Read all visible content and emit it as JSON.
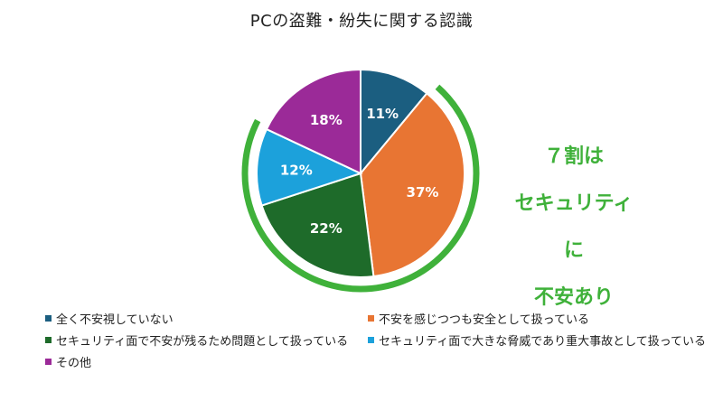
{
  "chart_data": {
    "type": "pie",
    "title": "PCの盗難・紛失に関する認識",
    "categories": [
      "全く不安視していない",
      "不安を感じつつも安全として扱っている",
      "セキュリティ面で不安が残るため問題として扱っている",
      "セキュリティ面で大きな脅威であり重大事故として扱っている",
      "その他"
    ],
    "values": [
      11,
      37,
      22,
      12,
      18
    ],
    "labels": [
      "11%",
      "37%",
      "22%",
      "12%",
      "18%"
    ],
    "colors": [
      "#1b5e80",
      "#e87533",
      "#1e6b2a",
      "#1ca1db",
      "#9b2a98"
    ],
    "start_angle_deg": 0,
    "direction": "clockwise",
    "legend_position": "bottom",
    "annotation": {
      "lines": [
        "７割は",
        "セキュリティに",
        "不安あり"
      ],
      "color": "#3fb13a",
      "arc_covers_categories": [
        "不安を感じつつも安全として扱っている",
        "セキュリティ面で不安が残るため問題として扱っている",
        "セキュリティ面で大きな脅威であり重大事故として扱っている"
      ]
    }
  },
  "title": "PCの盗難・紛失に関する認識",
  "callout": {
    "line1": "７割は",
    "line2": "セキュリティに",
    "line3": "不安あり"
  },
  "legend": [
    {
      "label": "全く不安視していない",
      "color": "#1b5e80"
    },
    {
      "label": "不安を感じつつも安全として扱っている",
      "color": "#e87533"
    },
    {
      "label": "セキュリティ面で不安が残るため問題として扱っている",
      "color": "#1e6b2a"
    },
    {
      "label": "セキュリティ面で大きな脅威であり重大事故として扱っている",
      "color": "#1ca1db"
    },
    {
      "label": "その他",
      "color": "#9b2a98"
    }
  ]
}
